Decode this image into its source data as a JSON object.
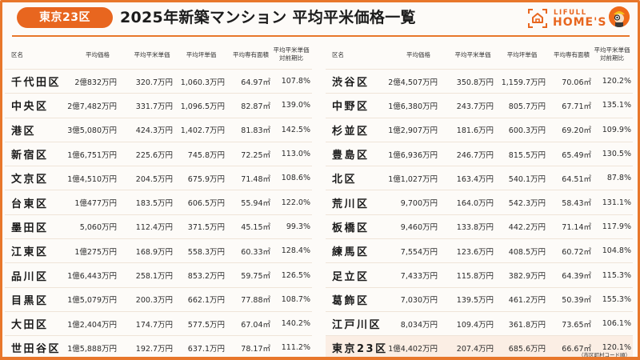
{
  "header": {
    "badge": "東京23区",
    "title": "2025年新築マンション 平均平米価格一覧",
    "logo_top": "LIFULL",
    "logo_bottom": "HOME'S",
    "logo_icon": "house-icon",
    "mascot_icon": "mascot-icon"
  },
  "colors": {
    "accent": "#e8661f",
    "border": "#e8772b",
    "highlight_row": "#fbeee4",
    "background": "#fdfbf8"
  },
  "columns": {
    "name": "区名",
    "price": "平均価格",
    "sqm_price": "平均平米単価",
    "tsubo_price": "平均坪単価",
    "area": "平均専有面積",
    "ratio_line1": "平均平米単価",
    "ratio_line2": "対前期比"
  },
  "left_table": [
    {
      "name": "千代田区",
      "price": "2億832万円",
      "sqm": "320.7万円",
      "tsubo": "1,060.3万円",
      "area": "64.97㎡",
      "ratio": "107.8%"
    },
    {
      "name": "中央区",
      "price": "2億7,482万円",
      "sqm": "331.7万円",
      "tsubo": "1,096.5万円",
      "area": "82.87㎡",
      "ratio": "139.0%"
    },
    {
      "name": "港区",
      "price": "3億5,080万円",
      "sqm": "424.3万円",
      "tsubo": "1,402.7万円",
      "area": "81.83㎡",
      "ratio": "142.5%"
    },
    {
      "name": "新宿区",
      "price": "1億6,751万円",
      "sqm": "225.6万円",
      "tsubo": "745.8万円",
      "area": "72.25㎡",
      "ratio": "113.0%"
    },
    {
      "name": "文京区",
      "price": "1億4,510万円",
      "sqm": "204.5万円",
      "tsubo": "675.9万円",
      "area": "71.48㎡",
      "ratio": "108.6%"
    },
    {
      "name": "台東区",
      "price": "1億477万円",
      "sqm": "183.5万円",
      "tsubo": "606.5万円",
      "area": "55.94㎡",
      "ratio": "122.0%"
    },
    {
      "name": "墨田区",
      "price": "5,060万円",
      "sqm": "112.4万円",
      "tsubo": "371.5万円",
      "area": "45.15㎡",
      "ratio": "99.3%"
    },
    {
      "name": "江東区",
      "price": "1億275万円",
      "sqm": "168.9万円",
      "tsubo": "558.3万円",
      "area": "60.33㎡",
      "ratio": "128.4%"
    },
    {
      "name": "品川区",
      "price": "1億6,443万円",
      "sqm": "258.1万円",
      "tsubo": "853.2万円",
      "area": "59.75㎡",
      "ratio": "126.5%"
    },
    {
      "name": "目黒区",
      "price": "1億5,079万円",
      "sqm": "200.3万円",
      "tsubo": "662.1万円",
      "area": "77.88㎡",
      "ratio": "108.7%"
    },
    {
      "name": "大田区",
      "price": "1億2,404万円",
      "sqm": "174.7万円",
      "tsubo": "577.5万円",
      "area": "67.04㎡",
      "ratio": "140.2%"
    },
    {
      "name": "世田谷区",
      "price": "1億5,888万円",
      "sqm": "192.7万円",
      "tsubo": "637.1万円",
      "area": "78.17㎡",
      "ratio": "111.2%"
    }
  ],
  "right_table": [
    {
      "name": "渋谷区",
      "price": "2億4,507万円",
      "sqm": "350.8万円",
      "tsubo": "1,159.7万円",
      "area": "70.06㎡",
      "ratio": "120.2%"
    },
    {
      "name": "中野区",
      "price": "1億6,380万円",
      "sqm": "243.7万円",
      "tsubo": "805.7万円",
      "area": "67.71㎡",
      "ratio": "135.1%"
    },
    {
      "name": "杉並区",
      "price": "1億2,907万円",
      "sqm": "181.6万円",
      "tsubo": "600.3万円",
      "area": "69.20㎡",
      "ratio": "109.9%"
    },
    {
      "name": "豊島区",
      "price": "1億6,936万円",
      "sqm": "246.7万円",
      "tsubo": "815.5万円",
      "area": "65.49㎡",
      "ratio": "130.5%"
    },
    {
      "name": "北区",
      "price": "1億1,027万円",
      "sqm": "163.4万円",
      "tsubo": "540.1万円",
      "area": "64.51㎡",
      "ratio": "87.8%"
    },
    {
      "name": "荒川区",
      "price": "9,700万円",
      "sqm": "164.0万円",
      "tsubo": "542.3万円",
      "area": "58.43㎡",
      "ratio": "131.1%"
    },
    {
      "name": "板橋区",
      "price": "9,460万円",
      "sqm": "133.8万円",
      "tsubo": "442.2万円",
      "area": "71.14㎡",
      "ratio": "117.9%"
    },
    {
      "name": "練馬区",
      "price": "7,554万円",
      "sqm": "123.6万円",
      "tsubo": "408.5万円",
      "area": "60.72㎡",
      "ratio": "104.8%"
    },
    {
      "name": "足立区",
      "price": "7,433万円",
      "sqm": "115.8万円",
      "tsubo": "382.9万円",
      "area": "64.39㎡",
      "ratio": "115.3%"
    },
    {
      "name": "葛飾区",
      "price": "7,030万円",
      "sqm": "139.5万円",
      "tsubo": "461.2万円",
      "area": "50.39㎡",
      "ratio": "155.3%"
    },
    {
      "name": "江戸川区",
      "price": "8,034万円",
      "sqm": "109.4万円",
      "tsubo": "361.8万円",
      "area": "73.65㎡",
      "ratio": "106.1%"
    },
    {
      "name": "東京23区",
      "price": "1億4,402万円",
      "sqm": "207.4万円",
      "tsubo": "685.6万円",
      "area": "66.67㎡",
      "ratio": "120.1%",
      "highlight": true
    }
  ],
  "footnote": "（市区町村コード順）"
}
